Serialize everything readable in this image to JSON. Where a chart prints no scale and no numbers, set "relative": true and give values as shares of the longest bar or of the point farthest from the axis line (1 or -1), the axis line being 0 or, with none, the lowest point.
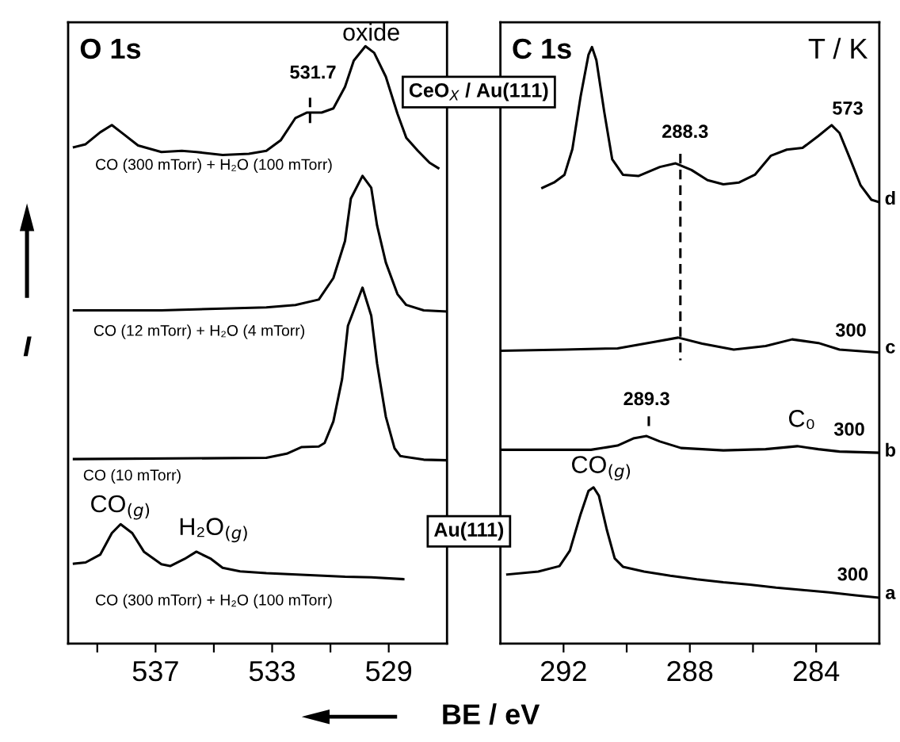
{
  "chart_data": [
    {
      "type": "line",
      "relative": true,
      "title": "O 1s",
      "xlabel": "BE / eV",
      "ylabel": "I",
      "xlim": [
        540,
        527
      ],
      "xticks": [
        {
          "value": 539,
          "label": null
        },
        537,
        {
          "value": 535,
          "label": null
        },
        533,
        {
          "value": 531,
          "label": null
        },
        529
      ],
      "tick_labels": "x",
      "series": [
        {
          "color": "#000000",
          "x": [
            539.8,
            539.4,
            538.9,
            538.5,
            538.1,
            537.6,
            536.8,
            536.1,
            535.6,
            534.7,
            533.8,
            533.2,
            532.7,
            532.2,
            531.8,
            531.3,
            530.9,
            530.5,
            530.2,
            529.8,
            529.5,
            529.1,
            528.7,
            528.4,
            528.0,
            527.6,
            527.3
          ],
          "values": [
            0.831,
            0.836,
            0.856,
            0.868,
            0.853,
            0.834,
            0.823,
            0.825,
            0.823,
            0.818,
            0.82,
            0.825,
            0.843,
            0.88,
            0.889,
            0.889,
            0.896,
            0.932,
            0.976,
            1.0,
            0.989,
            0.949,
            0.887,
            0.847,
            0.825,
            0.805,
            0.796
          ]
        },
        {
          "color": "#000000",
          "x": [
            539.8,
            536.8,
            533.2,
            532.2,
            531.4,
            530.9,
            530.5,
            530.3,
            529.9,
            529.6,
            529.4,
            529.1,
            528.7,
            528.4,
            527.8,
            527.0
          ],
          "values": [
            0.558,
            0.558,
            0.563,
            0.567,
            0.576,
            0.612,
            0.674,
            0.745,
            0.783,
            0.763,
            0.7,
            0.638,
            0.585,
            0.567,
            0.558,
            0.556
          ]
        },
        {
          "color": "#000000",
          "x": [
            539.8,
            533.2,
            532.5,
            532.0,
            531.4,
            531.2,
            530.9,
            530.6,
            530.4,
            529.9,
            529.6,
            529.4,
            529.1,
            528.8,
            528.6,
            527.8,
            527.0
          ],
          "values": [
            0.309,
            0.311,
            0.318,
            0.329,
            0.33,
            0.336,
            0.372,
            0.443,
            0.532,
            0.596,
            0.549,
            0.469,
            0.38,
            0.327,
            0.314,
            0.308,
            0.307
          ]
        },
        {
          "color": "#000000",
          "x": [
            539.8,
            539.4,
            538.9,
            538.5,
            538.2,
            537.8,
            537.4,
            536.8,
            536.5,
            536.0,
            535.6,
            535.1,
            534.7,
            534.1,
            533.2,
            532.3,
            531.4,
            530.5,
            529.6,
            528.5
          ],
          "values": [
            0.134,
            0.136,
            0.149,
            0.185,
            0.2,
            0.185,
            0.154,
            0.133,
            0.13,
            0.142,
            0.154,
            0.142,
            0.127,
            0.121,
            0.118,
            0.116,
            0.114,
            0.112,
            0.111,
            0.108
          ]
        },
        {
          "color": "#000000",
          "line_style": "dashed",
          "x": [
            531.7,
            531.7
          ],
          "values": [
            0.914,
            0.865
          ]
        }
      ],
      "annotations": [
        "531.7",
        "oxide",
        "CO (300 mTorr) + H₂O (100 mTorr)",
        "CO (12 mTorr) + H₂O (4 mTorr)",
        "CO (10 mTorr)",
        "CO$_{(g)}$",
        "H₂O$_{(g)}$",
        "CO (300 mTorr) + H₂O (100 mTorr)",
        "CeO$_{X}$ / Au(111)",
        "Au(111)"
      ]
    },
    {
      "type": "line",
      "relative": true,
      "title": "C 1s",
      "xlim": [
        294,
        282
      ],
      "xticks": [
        292,
        {
          "value": 290,
          "label": null
        },
        288,
        {
          "value": 286,
          "label": null
        },
        284
      ],
      "tick_labels": "x",
      "series": [
        {
          "color": "#000000",
          "x": [
            292.67,
            292.3,
            291.97,
            291.72,
            291.46,
            291.21,
            291.1,
            290.96,
            290.71,
            290.46,
            290.12,
            289.62,
            288.95,
            288.45,
            287.95,
            287.44,
            286.94,
            286.44,
            285.94,
            285.43,
            284.93,
            284.43,
            283.93,
            283.51,
            283.26,
            282.92,
            282.59,
            282.25,
            282.0
          ],
          "values": [
            0.764,
            0.773,
            0.786,
            0.829,
            0.917,
            0.987,
            1.0,
            0.978,
            0.891,
            0.812,
            0.786,
            0.784,
            0.799,
            0.805,
            0.794,
            0.777,
            0.77,
            0.773,
            0.786,
            0.818,
            0.828,
            0.831,
            0.851,
            0.869,
            0.856,
            0.812,
            0.768,
            0.744,
            0.74
          ]
        },
        {
          "color": "#000000",
          "x": [
            294.0,
            291.97,
            290.29,
            289.12,
            288.37,
            287.61,
            286.61,
            285.6,
            284.76,
            283.93,
            283.26,
            282.0
          ],
          "values": [
            0.491,
            0.493,
            0.495,
            0.506,
            0.513,
            0.503,
            0.493,
            0.499,
            0.51,
            0.504,
            0.493,
            0.488
          ]
        },
        {
          "color": "#000000",
          "x": [
            294.0,
            291.13,
            290.29,
            289.79,
            289.37,
            288.95,
            288.28,
            286.94,
            285.6,
            284.6,
            283.93,
            283.26,
            282.0
          ],
          "values": [
            0.325,
            0.325,
            0.332,
            0.344,
            0.348,
            0.339,
            0.328,
            0.324,
            0.326,
            0.331,
            0.326,
            0.322,
            0.32
          ]
        },
        {
          "color": "#000000",
          "x": [
            293.78,
            292.8,
            292.13,
            291.8,
            291.46,
            291.21,
            291.05,
            290.88,
            290.63,
            290.38,
            290.12,
            289.45,
            288.62,
            287.78,
            286.94,
            286.1,
            285.27,
            284.43,
            283.59,
            282.75,
            282.0
          ],
          "values": [
            0.116,
            0.121,
            0.13,
            0.156,
            0.217,
            0.256,
            0.262,
            0.248,
            0.191,
            0.143,
            0.129,
            0.121,
            0.114,
            0.108,
            0.103,
            0.099,
            0.094,
            0.09,
            0.086,
            0.081,
            0.077
          ]
        },
        {
          "color": "#000000",
          "line_style": "dashed",
          "x": [
            288.3,
            288.3
          ],
          "values": [
            0.821,
            0.475
          ]
        },
        {
          "color": "#000000",
          "line_style": "dashed",
          "x": [
            289.3,
            289.3
          ],
          "values": [
            0.381,
            0.359
          ]
        }
      ],
      "annotations": [
        "288.3",
        "573",
        "d",
        "300",
        "c",
        "289.3",
        "C₀",
        "300",
        "b",
        "CO$_{(g)}$",
        "300",
        "a",
        "T / K"
      ]
    }
  ]
}
